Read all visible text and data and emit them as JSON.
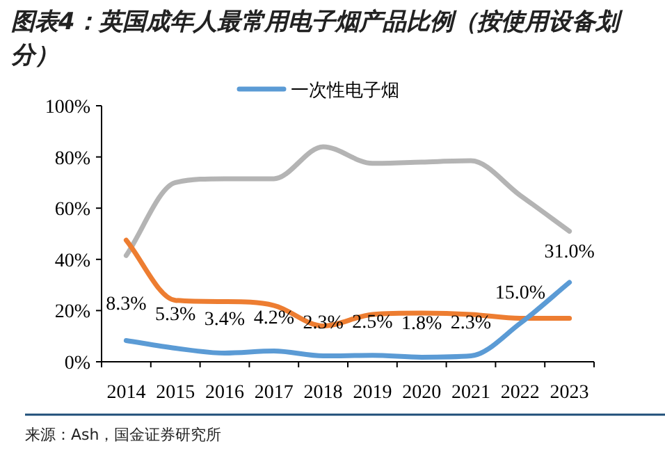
{
  "chart_data": {
    "type": "line",
    "title": "图表4：英国成年人最常用电子烟产品比例（按使用设备划分）",
    "categories": [
      "2014",
      "2015",
      "2016",
      "2017",
      "2018",
      "2019",
      "2020",
      "2021",
      "2022",
      "2023"
    ],
    "series": [
      {
        "name": "一次性电子烟",
        "color": "#5b9bd5",
        "values": [
          8.3,
          5.3,
          3.4,
          4.2,
          2.3,
          2.5,
          1.8,
          2.3,
          15.0,
          31.0
        ],
        "value_labels": [
          "8.3%",
          "5.3%",
          "3.4%",
          "4.2%",
          "2.3%",
          "2.5%",
          "1.8%",
          "2.3%",
          "15.0%",
          "31.0%"
        ]
      },
      {
        "color": "#ed7d31",
        "values": [
          47.5,
          24,
          23.5,
          22,
          14,
          18.5,
          19,
          18.5,
          17,
          17
        ]
      },
      {
        "color": "#b4b4b4",
        "values": [
          41.5,
          70,
          71.5,
          71.5,
          84,
          77.5,
          78,
          78.5,
          65,
          51
        ]
      }
    ],
    "ylim": [
      0,
      100
    ],
    "yticks": [
      {
        "value": 0,
        "label": "0%"
      },
      {
        "value": 20,
        "label": "20%"
      },
      {
        "value": 40,
        "label": "40%"
      },
      {
        "value": 60,
        "label": "60%"
      },
      {
        "value": 80,
        "label": "80%"
      },
      {
        "value": 100,
        "label": "100%"
      }
    ],
    "legend": "top",
    "marker": "none",
    "line_style": "solid",
    "annotations": [
      "来源：Ash，国金证券研究所"
    ]
  }
}
